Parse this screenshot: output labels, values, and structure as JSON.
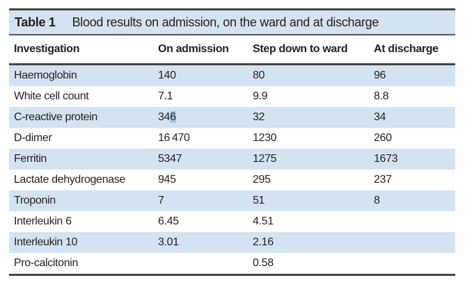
{
  "colors": {
    "band_blue": "#d4e3f1",
    "selection_blue": "#a7c6e2",
    "rule_dark": "#454545",
    "text": "#242122"
  },
  "table": {
    "label": "Table 1",
    "title": "Blood results on admission, on the ward and at discharge",
    "columns": [
      "Investigation",
      "On admission",
      "Step down to ward",
      "At discharge"
    ],
    "rows": [
      {
        "cells": [
          "Haemoglobin",
          "140",
          "80",
          "96"
        ]
      },
      {
        "cells": [
          "White cell count",
          "7.1",
          "9.9",
          "8.8"
        ]
      },
      {
        "cells": [
          "C-reactive protein",
          {
            "full": "346",
            "before": "34",
            "selected": "6"
          },
          "32",
          "34"
        ]
      },
      {
        "cells": [
          "D-dimer",
          "16 470",
          "1230",
          "260"
        ]
      },
      {
        "cells": [
          "Ferritin",
          "5347",
          "1275",
          "1673"
        ]
      },
      {
        "cells": [
          "Lactate dehydrogenase",
          "945",
          "295",
          "237"
        ]
      },
      {
        "cells": [
          "Troponin",
          "7",
          "51",
          "8"
        ]
      },
      {
        "cells": [
          "Interleukin 6",
          "6.45",
          "4.51",
          ""
        ]
      },
      {
        "cells": [
          "Interleukin 10",
          "3.01",
          "2.16",
          ""
        ]
      },
      {
        "cells": [
          "Pro-calcitonin",
          "",
          "0.58",
          ""
        ]
      }
    ]
  }
}
